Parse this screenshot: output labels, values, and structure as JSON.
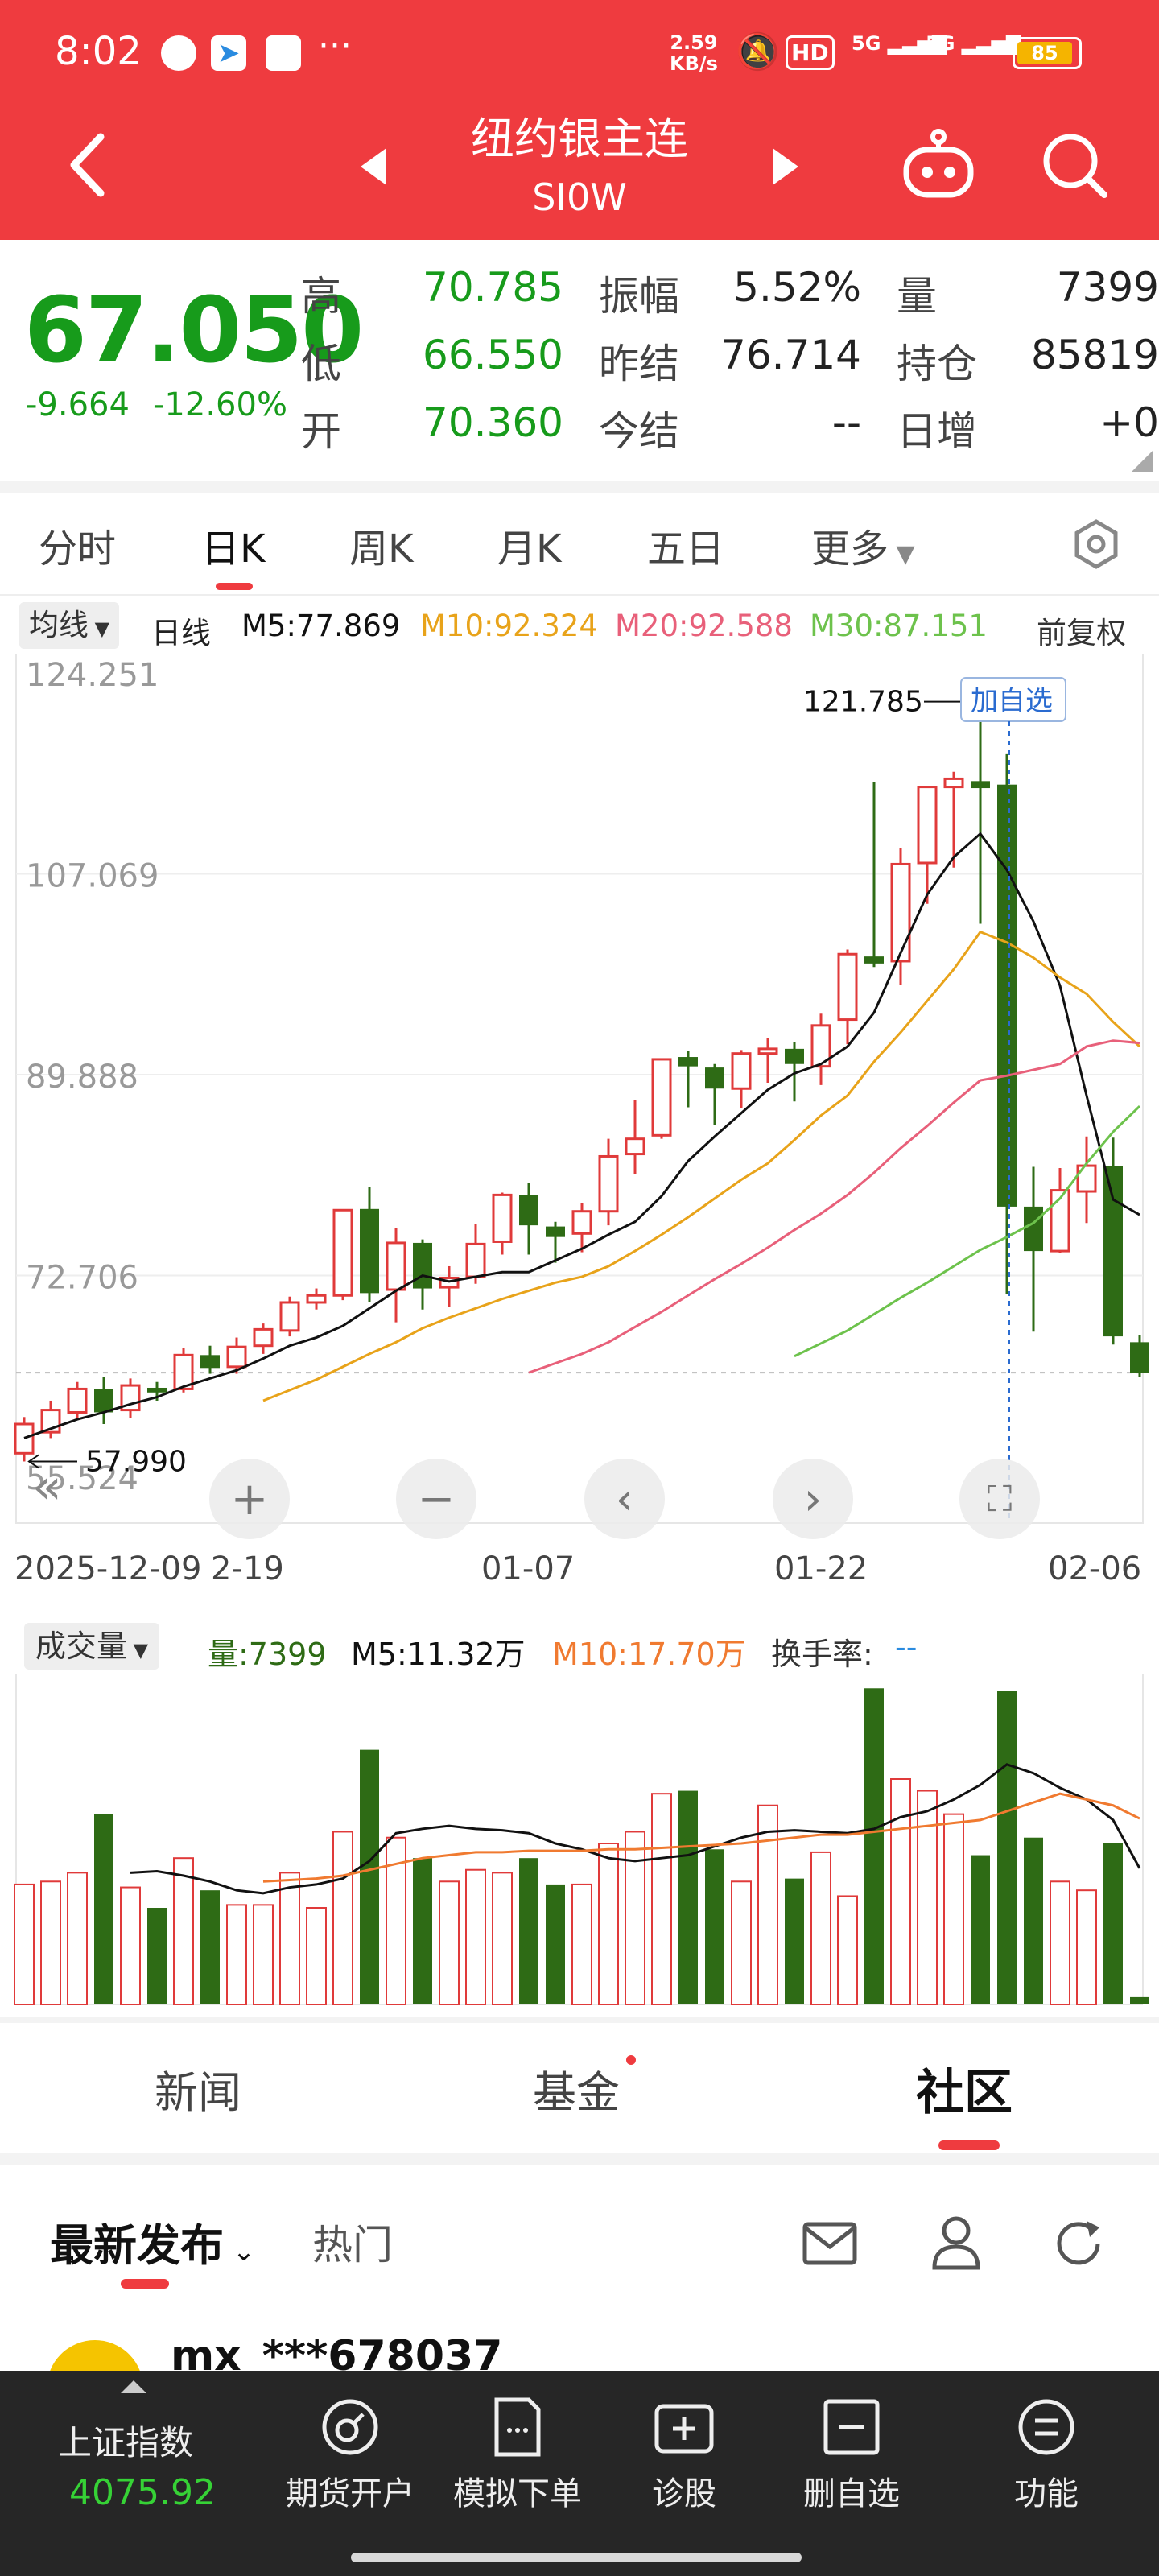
{
  "status": {
    "time": "8:02",
    "net_speed_top": "2.59",
    "net_speed_bottom": "KB/s",
    "battery": "85",
    "more": "···",
    "hd": "HD",
    "sig1": "5G",
    "sig2": "5G"
  },
  "header": {
    "title": "纽约银主连",
    "code": "SI0W"
  },
  "quote": {
    "price": "67.050",
    "change": "-9.664",
    "change_pct": "-12.60%",
    "high_label": "高",
    "high": "70.785",
    "low_label": "低",
    "low": "66.550",
    "open_label": "开",
    "open": "70.360",
    "amp_label": "振幅",
    "amp": "5.52%",
    "prev_label": "昨结",
    "prev": "76.714",
    "settle_label": "今结",
    "settle": "--",
    "vol_label": "量",
    "vol": "7399",
    "oi_label": "持仓",
    "oi": "85819",
    "day_inc_label": "日增",
    "day_inc": "+0"
  },
  "tabs": [
    "分时",
    "日K",
    "周K",
    "月K",
    "五日",
    "更多"
  ],
  "active_tab": 1,
  "ma_bar": {
    "selector": "均线",
    "period": "日线",
    "m5": "M5:77.869",
    "m10": "M10:92.324",
    "m20": "M20:92.588",
    "m30": "M30:87.151",
    "adjust": "前复权"
  },
  "colors": {
    "up": "#e03a3a",
    "down": "#2e6b15",
    "m5": "#111111",
    "m10": "#e8a31a",
    "m20": "#e8607a",
    "m30": "#6dc24c",
    "accent": "#ef3b3f",
    "green_text": "#179b1b"
  },
  "chart_data": {
    "type": "candlestick",
    "y_ticks": [
      "124.251",
      "107.069",
      "89.888",
      "72.706",
      "55.524"
    ],
    "ylim": [
      55.524,
      124.251
    ],
    "x_tick_labels": [
      "2025-12-09",
      "2-19",
      "01-07",
      "01-22",
      "02-06"
    ],
    "high_marker": "121.785",
    "low_marker": "57.990",
    "add_watch": "加自选",
    "candles": [
      {
        "o": 57.5,
        "c": 60.0,
        "h": 60.6,
        "l": 56.8
      },
      {
        "o": 59.3,
        "c": 61.2,
        "h": 62.0,
        "l": 58.8
      },
      {
        "o": 61.0,
        "c": 63.0,
        "h": 63.6,
        "l": 60.5
      },
      {
        "o": 63.0,
        "c": 61.0,
        "h": 64.0,
        "l": 60.0
      },
      {
        "o": 61.2,
        "c": 63.3,
        "h": 63.9,
        "l": 60.5
      },
      {
        "o": 63.1,
        "c": 62.7,
        "h": 63.6,
        "l": 62.0
      },
      {
        "o": 63.0,
        "c": 65.9,
        "h": 66.5,
        "l": 62.7
      },
      {
        "o": 65.9,
        "c": 64.8,
        "h": 66.7,
        "l": 64.3
      },
      {
        "o": 64.9,
        "c": 66.6,
        "h": 67.4,
        "l": 64.3
      },
      {
        "o": 66.7,
        "c": 68.1,
        "h": 68.6,
        "l": 66.0
      },
      {
        "o": 68.0,
        "c": 70.4,
        "h": 70.9,
        "l": 67.5
      },
      {
        "o": 70.4,
        "c": 71.0,
        "h": 71.6,
        "l": 69.8
      },
      {
        "o": 71.0,
        "c": 78.3,
        "h": 78.3,
        "l": 70.6
      },
      {
        "o": 78.4,
        "c": 71.2,
        "h": 80.3,
        "l": 70.4
      },
      {
        "o": 71.5,
        "c": 75.5,
        "h": 76.8,
        "l": 68.7
      },
      {
        "o": 75.5,
        "c": 71.6,
        "h": 75.8,
        "l": 69.8
      },
      {
        "o": 71.7,
        "c": 72.5,
        "h": 73.5,
        "l": 70.0
      },
      {
        "o": 72.6,
        "c": 75.4,
        "h": 77.1,
        "l": 72.0
      },
      {
        "o": 75.6,
        "c": 79.6,
        "h": 79.8,
        "l": 74.5
      },
      {
        "o": 79.6,
        "c": 77.0,
        "h": 80.6,
        "l": 74.5
      },
      {
        "o": 76.9,
        "c": 76.0,
        "h": 77.3,
        "l": 73.8
      },
      {
        "o": 76.3,
        "c": 78.2,
        "h": 78.9,
        "l": 74.7
      },
      {
        "o": 78.2,
        "c": 82.9,
        "h": 84.4,
        "l": 77.0
      },
      {
        "o": 83.1,
        "c": 84.4,
        "h": 87.7,
        "l": 81.4
      },
      {
        "o": 84.7,
        "c": 91.2,
        "h": 91.2,
        "l": 84.4
      },
      {
        "o": 91.4,
        "c": 90.6,
        "h": 91.9,
        "l": 87.1
      },
      {
        "o": 90.5,
        "c": 88.7,
        "h": 90.8,
        "l": 85.6
      },
      {
        "o": 88.7,
        "c": 91.7,
        "h": 92.0,
        "l": 87.0
      },
      {
        "o": 91.7,
        "c": 92.1,
        "h": 93.0,
        "l": 89.2
      },
      {
        "o": 92.1,
        "c": 90.8,
        "h": 92.7,
        "l": 87.6
      },
      {
        "o": 90.6,
        "c": 94.1,
        "h": 95.1,
        "l": 89.0
      },
      {
        "o": 94.6,
        "c": 100.2,
        "h": 100.6,
        "l": 92.5
      },
      {
        "o": 100.0,
        "c": 99.4,
        "h": 114.9,
        "l": 99.1
      },
      {
        "o": 99.6,
        "c": 107.9,
        "h": 109.3,
        "l": 97.6
      },
      {
        "o": 108.0,
        "c": 114.5,
        "h": 114.5,
        "l": 104.5
      },
      {
        "o": 114.5,
        "c": 115.2,
        "h": 115.8,
        "l": 107.6
      },
      {
        "o": 115.0,
        "c": 114.4,
        "h": 121.8,
        "l": 102.8
      },
      {
        "o": 114.7,
        "c": 78.6,
        "h": 117.3,
        "l": 71.1
      },
      {
        "o": 78.6,
        "c": 74.8,
        "h": 82.0,
        "l": 67.9
      },
      {
        "o": 74.8,
        "c": 80.0,
        "h": 81.9,
        "l": 74.6
      },
      {
        "o": 79.9,
        "c": 82.1,
        "h": 84.6,
        "l": 77.2
      },
      {
        "o": 82.1,
        "c": 67.5,
        "h": 84.5,
        "l": 66.8
      },
      {
        "o": 67.0,
        "c": 64.4,
        "h": 67.6,
        "l": 64.0
      }
    ],
    "ma5": [
      58.8,
      59.6,
      60.4,
      61.0,
      61.7,
      62.3,
      63.2,
      63.9,
      64.6,
      65.6,
      66.7,
      67.4,
      68.4,
      69.9,
      71.4,
      72.7,
      72.2,
      72.6,
      73.0,
      73.0,
      74.0,
      75.0,
      76.2,
      77.3,
      79.5,
      82.5,
      84.6,
      86.6,
      88.6,
      90.0,
      90.8,
      92.3,
      95.2,
      100.3,
      105.3,
      108.5,
      110.5,
      107.4,
      103.0,
      97.5,
      88.1,
      79.2,
      77.9
    ],
    "ma10": [
      null,
      null,
      null,
      null,
      null,
      null,
      null,
      null,
      null,
      62.0,
      62.9,
      63.8,
      64.9,
      66.0,
      67.0,
      68.2,
      69.1,
      69.9,
      70.7,
      71.4,
      72.1,
      72.6,
      73.5,
      74.8,
      76.2,
      77.7,
      79.3,
      80.9,
      82.3,
      84.3,
      86.4,
      88.1,
      91.0,
      93.5,
      96.2,
      98.9,
      102.1,
      101.2,
      99.9,
      98.2,
      96.8,
      94.4,
      92.3
    ],
    "ma20": [
      null,
      null,
      null,
      null,
      null,
      null,
      null,
      null,
      null,
      null,
      null,
      null,
      null,
      null,
      null,
      null,
      null,
      null,
      null,
      64.4,
      65.2,
      66.0,
      67.0,
      68.3,
      69.6,
      71.0,
      72.4,
      73.7,
      75.1,
      76.6,
      78.0,
      79.6,
      81.5,
      83.6,
      85.5,
      87.5,
      89.4,
      89.8,
      90.3,
      90.8,
      92.3,
      92.8,
      92.6
    ],
    "ma30": [
      null,
      null,
      null,
      null,
      null,
      null,
      null,
      null,
      null,
      null,
      null,
      null,
      null,
      null,
      null,
      null,
      null,
      null,
      null,
      null,
      null,
      null,
      null,
      null,
      null,
      null,
      null,
      null,
      null,
      65.8,
      66.9,
      68.0,
      69.4,
      70.8,
      72.1,
      73.5,
      74.9,
      76.0,
      77.2,
      79.3,
      82.3,
      85.0,
      87.2
    ]
  },
  "vol_bar": {
    "selector": "成交量",
    "vol": "量:7399",
    "m5": "M5:11.32万",
    "m10": "M10:17.70万",
    "turnover_label": "换手率:",
    "turnover": "--"
  },
  "volume_data": {
    "vmax": 220000,
    "values": [
      82000,
      84000,
      90000,
      130000,
      80000,
      66000,
      100000,
      78000,
      68000,
      68000,
      90000,
      66000,
      118000,
      174000,
      114000,
      100000,
      84000,
      92000,
      90000,
      100000,
      82000,
      82000,
      110000,
      118000,
      144000,
      146000,
      106000,
      84000,
      136000,
      86000,
      104000,
      74000,
      216000,
      154000,
      146000,
      130000,
      102000,
      214000,
      114000,
      84000,
      78000,
      110000,
      5000
    ],
    "m5": [
      null,
      null,
      null,
      null,
      90000,
      91000,
      88000,
      84000,
      78000,
      76000,
      80000,
      82000,
      86000,
      98000,
      117000,
      120000,
      122000,
      120000,
      119000,
      117000,
      110000,
      106000,
      100000,
      98000,
      100000,
      102000,
      108000,
      114000,
      118000,
      119000,
      118000,
      117000,
      120000,
      128000,
      132000,
      140000,
      150000,
      164000,
      158000,
      148000,
      140000,
      126000,
      93000
    ],
    "m10": [
      null,
      null,
      null,
      null,
      null,
      null,
      null,
      null,
      null,
      84000,
      85000,
      86000,
      88000,
      92000,
      96000,
      100000,
      102000,
      104000,
      104000,
      105000,
      105000,
      105000,
      106000,
      106000,
      107000,
      108000,
      109000,
      110000,
      112000,
      114000,
      116000,
      116000,
      118000,
      120000,
      122000,
      124000,
      126000,
      132000,
      138000,
      144000,
      140000,
      136000,
      127000
    ]
  },
  "news_tabs": [
    "新闻",
    "基金",
    "社区"
  ],
  "feed": {
    "latest": "最新发布",
    "hot": "热门",
    "username": "mx_***678037"
  },
  "bottom_nav": {
    "index_name": "上证指数",
    "index_value": "4075.92",
    "items": [
      "期货开户",
      "模拟下单",
      "诊股",
      "删自选",
      "功能"
    ]
  }
}
